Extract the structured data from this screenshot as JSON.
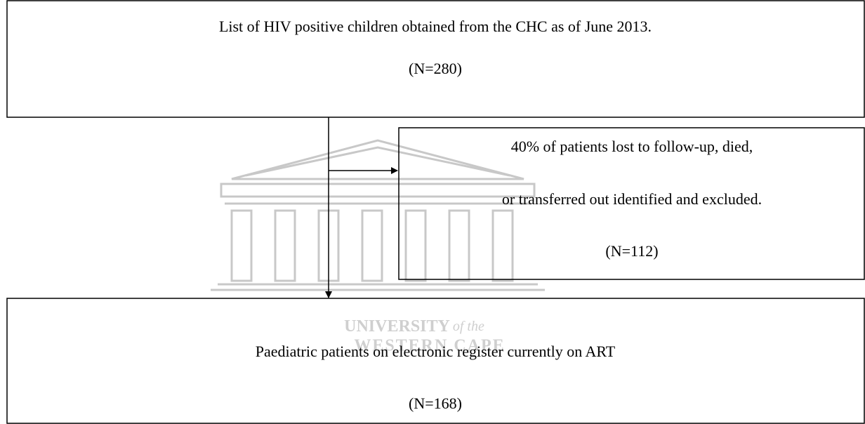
{
  "boxes": [
    {
      "lines": [
        "List of HIV positive children obtained from the CHC as of June 2013.",
        "(N=280)"
      ]
    },
    {
      "lines": [
        "40% of patients lost to follow-up, died,",
        "or transferred out identified and excluded.",
        "(N=112)"
      ]
    },
    {
      "lines": [
        "Paediatric patients on electronic register currently on ART",
        "(N=168)"
      ]
    }
  ],
  "watermark": {
    "name": "UNIVERSITY",
    "suffix": "of the",
    "place": "WESTERN CAPE"
  }
}
